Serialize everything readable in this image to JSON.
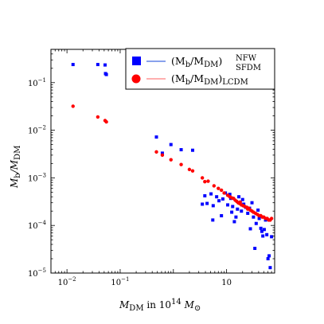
{
  "chart_data": {
    "type": "scatter",
    "xscale": "log",
    "yscale": "log",
    "xlim": [
      0.005,
      80
    ],
    "ylim": [
      1e-05,
      0.5
    ],
    "x_ticks": [
      0.01,
      0.1,
      10
    ],
    "x_tick_labels": [
      "10^-2",
      "10^-1",
      "10"
    ],
    "y_ticks": [
      0.1,
      0.01,
      0.001,
      0.0001,
      1e-05
    ],
    "y_tick_labels": [
      "10^-1",
      "10^-2",
      "10^-3",
      "10^-4",
      "10^-5"
    ],
    "xlabel": {
      "main": "M",
      "sub": "DM",
      "rest": " in 10",
      "sup": "14",
      "tail": " M",
      "tail_sub": "⊙"
    },
    "ylabel": {
      "main": "M",
      "sub1": "b",
      "slash": "/M",
      "sub2": "DM"
    },
    "legend": {
      "placement": "top-right"
    },
    "series": [
      {
        "name": "(M_b/M_DM)^NFW_SFDM",
        "legend_main": "(M",
        "legend_sub1": "b",
        "legend_mid": "/M",
        "legend_sub2": "DM",
        "legend_close": ")",
        "legend_sup": "NFW",
        "legend_sub3": "SFDM",
        "color": "#0000ff",
        "marker": "square",
        "line_color": "#4169e1",
        "points": [
          [
            0.013,
            0.24
          ],
          [
            0.038,
            0.24
          ],
          [
            0.052,
            0.235
          ],
          [
            0.053,
            0.155
          ],
          [
            0.055,
            0.148
          ],
          [
            0.48,
            0.0072
          ],
          [
            0.62,
            0.0033
          ],
          [
            0.9,
            0.005
          ],
          [
            1.4,
            0.0039
          ],
          [
            2.3,
            0.0038
          ],
          [
            3.5,
            0.00028
          ],
          [
            3.9,
            0.00042
          ],
          [
            4.3,
            0.00029
          ],
          [
            5.1,
            0.00046
          ],
          [
            5.6,
            0.00026
          ],
          [
            6.5,
            0.0004
          ],
          [
            7.2,
            0.00033
          ],
          [
            8.5,
            0.00036
          ],
          [
            9.5,
            0.00048
          ],
          [
            10.5,
            0.00027
          ],
          [
            11.5,
            0.00045
          ],
          [
            12.0,
            0.00037
          ],
          [
            13.0,
            0.00025
          ],
          [
            14.0,
            0.00012
          ],
          [
            15.0,
            0.00015
          ],
          [
            16.0,
            0.00022
          ],
          [
            17.0,
            0.0004
          ],
          [
            18.0,
            0.0003
          ],
          [
            19.0,
            0.0002
          ],
          [
            21.0,
            0.00028
          ],
          [
            23.0,
            0.00024
          ],
          [
            25.0,
            0.00018
          ],
          [
            27.0,
            0.00023
          ],
          [
            28.0,
            8.5e-05
          ],
          [
            30.0,
            0.0003
          ],
          [
            32.0,
            0.00015
          ],
          [
            34.0,
            3.3e-05
          ],
          [
            36.0,
            0.00011
          ],
          [
            39.0,
            0.00021
          ],
          [
            41.0,
            0.00014
          ],
          [
            44.0,
            8.7e-05
          ],
          [
            46.0,
            7.5e-05
          ],
          [
            48.0,
            6e-05
          ],
          [
            51.0,
            8.2e-05
          ],
          [
            54.0,
            0.00013
          ],
          [
            57.0,
            6.4e-05
          ],
          [
            60.0,
            2e-05
          ],
          [
            63.0,
            2.3e-05
          ],
          [
            66.0,
            1.3e-05
          ],
          [
            70.0,
            5.8e-05
          ],
          [
            20.0,
            0.00035
          ],
          [
            12.5,
            0.00019
          ],
          [
            8.0,
            0.00016
          ],
          [
            5.5,
            0.00013
          ]
        ]
      },
      {
        "name": "(M_b/M_DM)_LCDM",
        "legend_main": "(M",
        "legend_sub1": "b",
        "legend_mid": "/M",
        "legend_sub2": "DM",
        "legend_close": ")",
        "legend_sub3": "LCDM",
        "color": "#ff0000",
        "marker": "circle",
        "line_color": "#ff7f7f",
        "points": [
          [
            0.013,
            0.032
          ],
          [
            0.038,
            0.019
          ],
          [
            0.052,
            0.016
          ],
          [
            0.055,
            0.015
          ],
          [
            0.48,
            0.0035
          ],
          [
            0.62,
            0.003
          ],
          [
            0.9,
            0.0024
          ],
          [
            1.4,
            0.0019
          ],
          [
            2.0,
            0.0015
          ],
          [
            2.3,
            0.0014
          ],
          [
            3.5,
            0.001
          ],
          [
            3.9,
            0.00083
          ],
          [
            4.5,
            0.00085
          ],
          [
            5.8,
            0.00068
          ],
          [
            7.0,
            0.0006
          ],
          [
            8.0,
            0.00055
          ],
          [
            9.0,
            0.00048
          ],
          [
            10.5,
            0.00043
          ],
          [
            11.5,
            0.0004
          ],
          [
            12.5,
            0.00038
          ],
          [
            13.5,
            0.00037
          ],
          [
            14.5,
            0.00034
          ],
          [
            15.5,
            0.00032
          ],
          [
            16.5,
            0.0003
          ],
          [
            17.5,
            0.00029
          ],
          [
            19.0,
            0.00027
          ],
          [
            20.5,
            0.00026
          ],
          [
            22.0,
            0.00025
          ],
          [
            24.0,
            0.00024
          ],
          [
            26.0,
            0.00023
          ],
          [
            28.0,
            0.00021
          ],
          [
            30.0,
            0.0002
          ],
          [
            32.0,
            0.00019
          ],
          [
            35.0,
            0.00018
          ],
          [
            38.0,
            0.00017
          ],
          [
            41.0,
            0.00016
          ],
          [
            44.0,
            0.00016
          ],
          [
            47.0,
            0.00015
          ],
          [
            50.0,
            0.00015
          ],
          [
            54.0,
            0.00014
          ],
          [
            58.0,
            0.00014
          ],
          [
            62.0,
            0.00013
          ],
          [
            66.0,
            0.00013
          ],
          [
            70.0,
            0.00014
          ],
          [
            25.0,
            0.00022
          ],
          [
            18.0,
            0.00031
          ]
        ]
      }
    ]
  }
}
